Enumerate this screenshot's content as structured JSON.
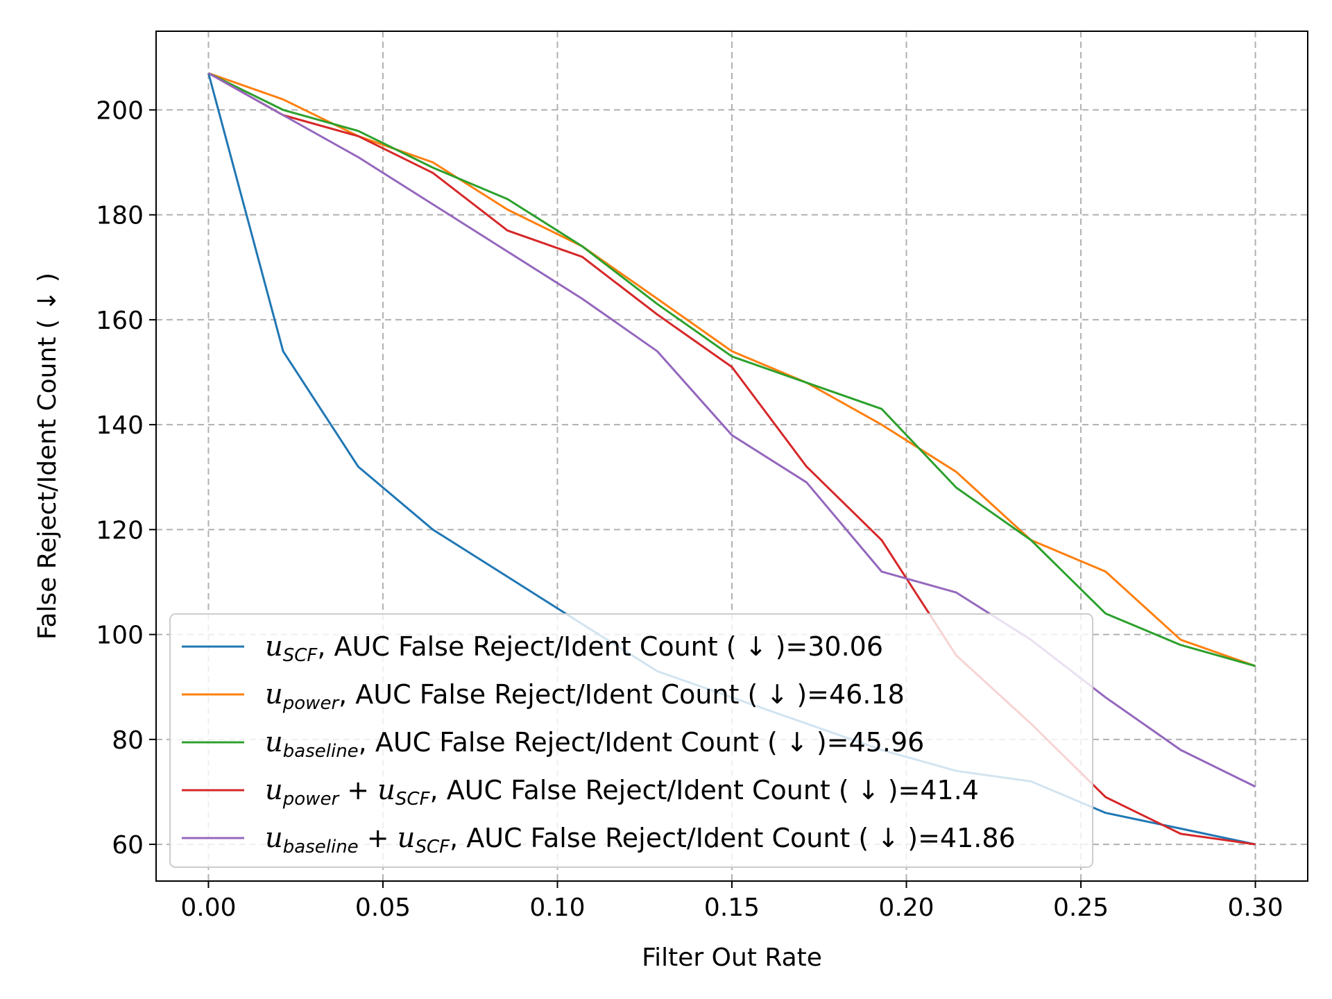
{
  "chart_data": {
    "type": "line",
    "xlabel": "Filter Out Rate",
    "ylabel": "False Reject/Ident Count ( ↓ )",
    "xlim": [
      -0.015,
      0.315
    ],
    "ylim": [
      53,
      215
    ],
    "xticks": [
      0.0,
      0.05,
      0.1,
      0.15,
      0.2,
      0.25,
      0.3
    ],
    "xtick_labels": [
      "0.00",
      "0.05",
      "0.10",
      "0.15",
      "0.20",
      "0.25",
      "0.30"
    ],
    "yticks": [
      60,
      80,
      100,
      120,
      140,
      160,
      180,
      200
    ],
    "ytick_labels": [
      "60",
      "80",
      "100",
      "120",
      "140",
      "160",
      "180",
      "200"
    ],
    "grid": true,
    "legend_position": "lower-left",
    "x": [
      0.0,
      0.0214,
      0.0429,
      0.0643,
      0.0857,
      0.1071,
      0.1286,
      0.15,
      0.1714,
      0.1929,
      0.2143,
      0.2357,
      0.2571,
      0.2786,
      0.3
    ],
    "series": [
      {
        "legend_parts": [
          "u",
          "SCF",
          "",
          "",
          ", AUC False Reject/Ident Count ( ↓ )=30.06"
        ],
        "color": "#1f77b4",
        "values": [
          207,
          154,
          132,
          120,
          111,
          102,
          93,
          88,
          83,
          78,
          74,
          72,
          66,
          63,
          60
        ]
      },
      {
        "legend_parts": [
          "u",
          "power",
          "",
          "",
          ", AUC False Reject/Ident Count ( ↓ )=46.18"
        ],
        "color": "#ff7f0e",
        "values": [
          207,
          202,
          195,
          190,
          181,
          174,
          164,
          154,
          148,
          140,
          131,
          118,
          112,
          99,
          94
        ]
      },
      {
        "legend_parts": [
          "u",
          "baseline",
          "",
          "",
          ", AUC False Reject/Ident Count ( ↓ )=45.96"
        ],
        "color": "#2ca02c",
        "values": [
          207,
          200,
          196,
          189,
          183,
          174,
          163,
          153,
          148,
          143,
          128,
          118,
          104,
          98,
          94
        ]
      },
      {
        "legend_parts": [
          "u",
          "power",
          "u",
          "SCF",
          ", AUC False Reject/Ident Count ( ↓ )=41.4"
        ],
        "color": "#d62728",
        "values": [
          207,
          199,
          195,
          188,
          177,
          172,
          161,
          151,
          132,
          118,
          96,
          83,
          69,
          62,
          60
        ]
      },
      {
        "legend_parts": [
          "u",
          "baseline",
          "u",
          "SCF",
          ", AUC False Reject/Ident Count ( ↓ )=41.86"
        ],
        "color": "#9467bd",
        "values": [
          207,
          199,
          191,
          182,
          173,
          164,
          154,
          138,
          129,
          112,
          108,
          99,
          88,
          78,
          71
        ]
      }
    ]
  }
}
